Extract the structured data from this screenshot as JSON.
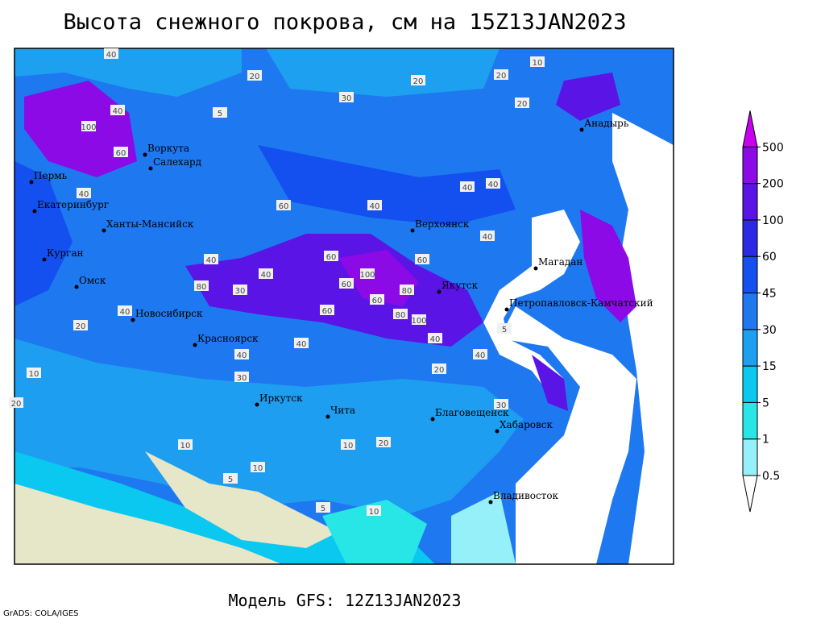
{
  "header": {
    "title": "Высота снежного покрова, см на 15Z13JAN2023"
  },
  "footer": {
    "model": "Модель GFS: 12Z13JAN2023",
    "credit": "GrADS: COLA/IGES"
  },
  "legend": {
    "levels": [
      0.5,
      1,
      5,
      15,
      30,
      45,
      60,
      100,
      200,
      500
    ],
    "colors": [
      "#ffffff",
      "#96f0fa",
      "#28e6e6",
      "#0ac8f0",
      "#1ea0f0",
      "#1e78f0",
      "#1450f0",
      "#2d28e6",
      "#5a14e6",
      "#8c0ae6",
      "#c800f0"
    ]
  },
  "cities": [
    "Воркута",
    "Салехард",
    "Пермь",
    "Екатеринбург",
    "Ханты-Мансийск",
    "Курган",
    "Омск",
    "Новосибирск",
    "Красноярск",
    "Иркутск",
    "Чита",
    "Верхоянск",
    "Якутск",
    "Магадан",
    "Анадырь",
    "Петропавловск-Камчатский",
    "Благовещенск",
    "Хабаровск",
    "Владивосток"
  ],
  "contour_labels": [
    40,
    20,
    30,
    20,
    20,
    10,
    20,
    5,
    100,
    40,
    60,
    40,
    60,
    40,
    40,
    40,
    60,
    40,
    40,
    60,
    40,
    60,
    80,
    100,
    80,
    60,
    100,
    80,
    60,
    30,
    40,
    40,
    30,
    20,
    40,
    10,
    5,
    20,
    10,
    10,
    5,
    10,
    20,
    40,
    20,
    10,
    5,
    30,
    40
  ]
}
